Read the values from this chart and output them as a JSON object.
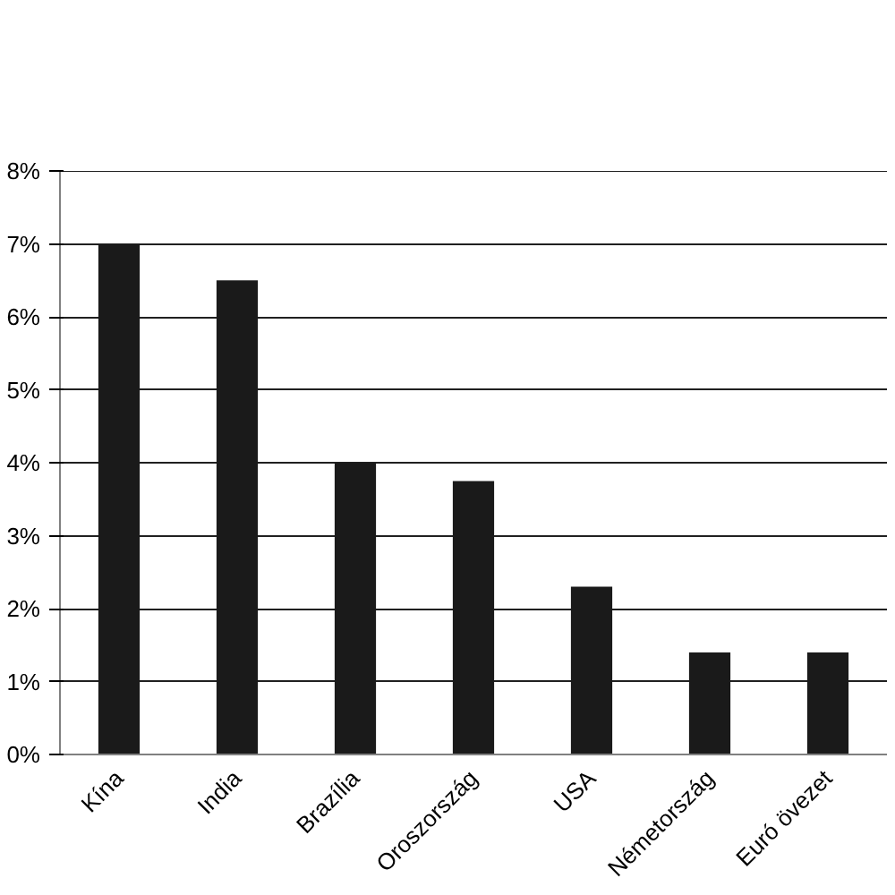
{
  "chart_data": {
    "type": "bar",
    "categories": [
      "Kína",
      "India",
      "Brazília",
      "Oroszország",
      "USA",
      "Németország",
      "Euró övezet"
    ],
    "values": [
      7.0,
      6.5,
      4.0,
      3.75,
      2.3,
      1.4,
      1.4
    ],
    "color": "#1a1a1a",
    "ylim": [
      0,
      8
    ],
    "yticks": [
      {
        "value": 0,
        "label": "0%"
      },
      {
        "value": 1,
        "label": "1%"
      },
      {
        "value": 2,
        "label": "2%"
      },
      {
        "value": 3,
        "label": "3%"
      },
      {
        "value": 4,
        "label": "4%"
      },
      {
        "value": 5,
        "label": "5%"
      },
      {
        "value": 6,
        "label": "6%"
      },
      {
        "value": 7,
        "label": "7%"
      },
      {
        "value": 8,
        "label": "8%"
      }
    ],
    "grid": "y"
  }
}
